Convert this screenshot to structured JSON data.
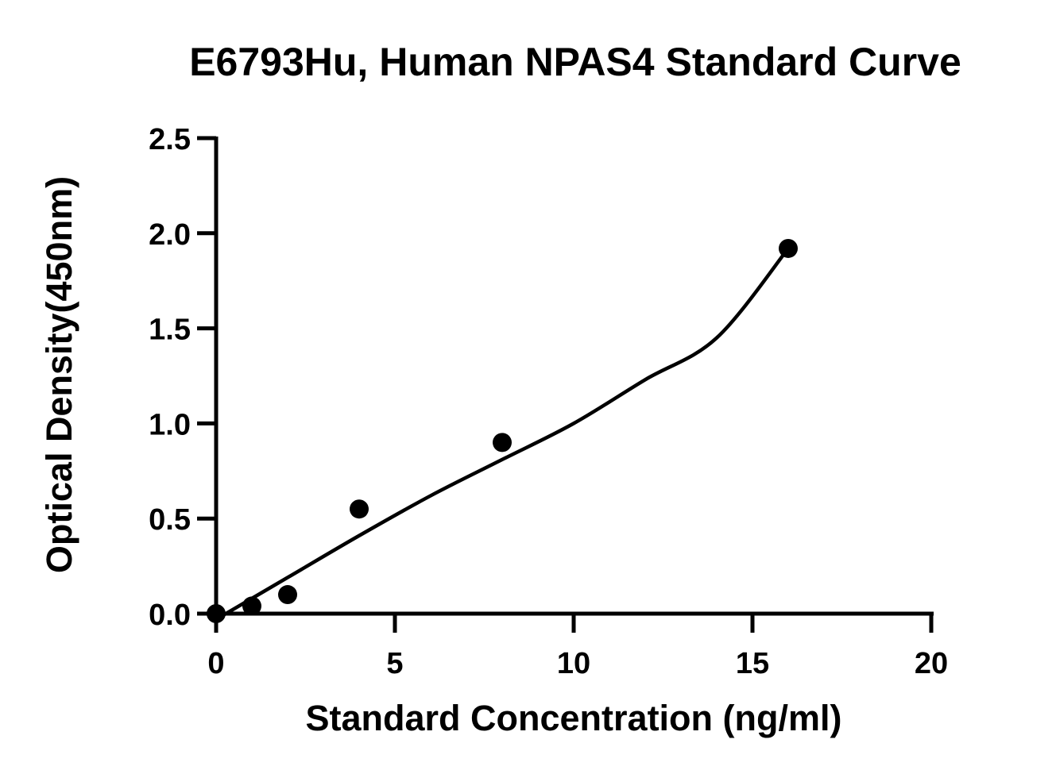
{
  "chart_data": {
    "type": "scatter",
    "title": "E6793Hu, Human NPAS4 Standard Curve",
    "xlabel": "Standard Concentration (ng/ml)",
    "ylabel": "Optical Density(450nm)",
    "xlim": [
      0,
      20
    ],
    "ylim": [
      0,
      2.5
    ],
    "x_ticks": [
      0,
      5,
      10,
      15,
      20
    ],
    "x_tick_labels": [
      "0",
      "5",
      "10",
      "15",
      "20"
    ],
    "y_ticks": [
      0.0,
      0.5,
      1.0,
      1.5,
      2.0,
      2.5
    ],
    "y_tick_labels": [
      "0.0",
      "0.5",
      "1.0",
      "1.5",
      "2.0",
      "2.5"
    ],
    "grid": false,
    "legend": "none",
    "points": {
      "x": [
        0,
        1,
        2,
        4,
        8,
        16
      ],
      "y": [
        0.0,
        0.04,
        0.1,
        0.55,
        0.9,
        1.92
      ]
    },
    "fit_line": {
      "x": [
        0,
        2,
        4,
        6,
        8,
        10,
        12,
        14,
        16
      ],
      "y": [
        -0.03,
        0.19,
        0.41,
        0.62,
        0.81,
        1.0,
        1.23,
        1.45,
        1.92
      ]
    },
    "colors": {
      "points": "#000000",
      "line": "#000000",
      "axes": "#000000"
    }
  }
}
